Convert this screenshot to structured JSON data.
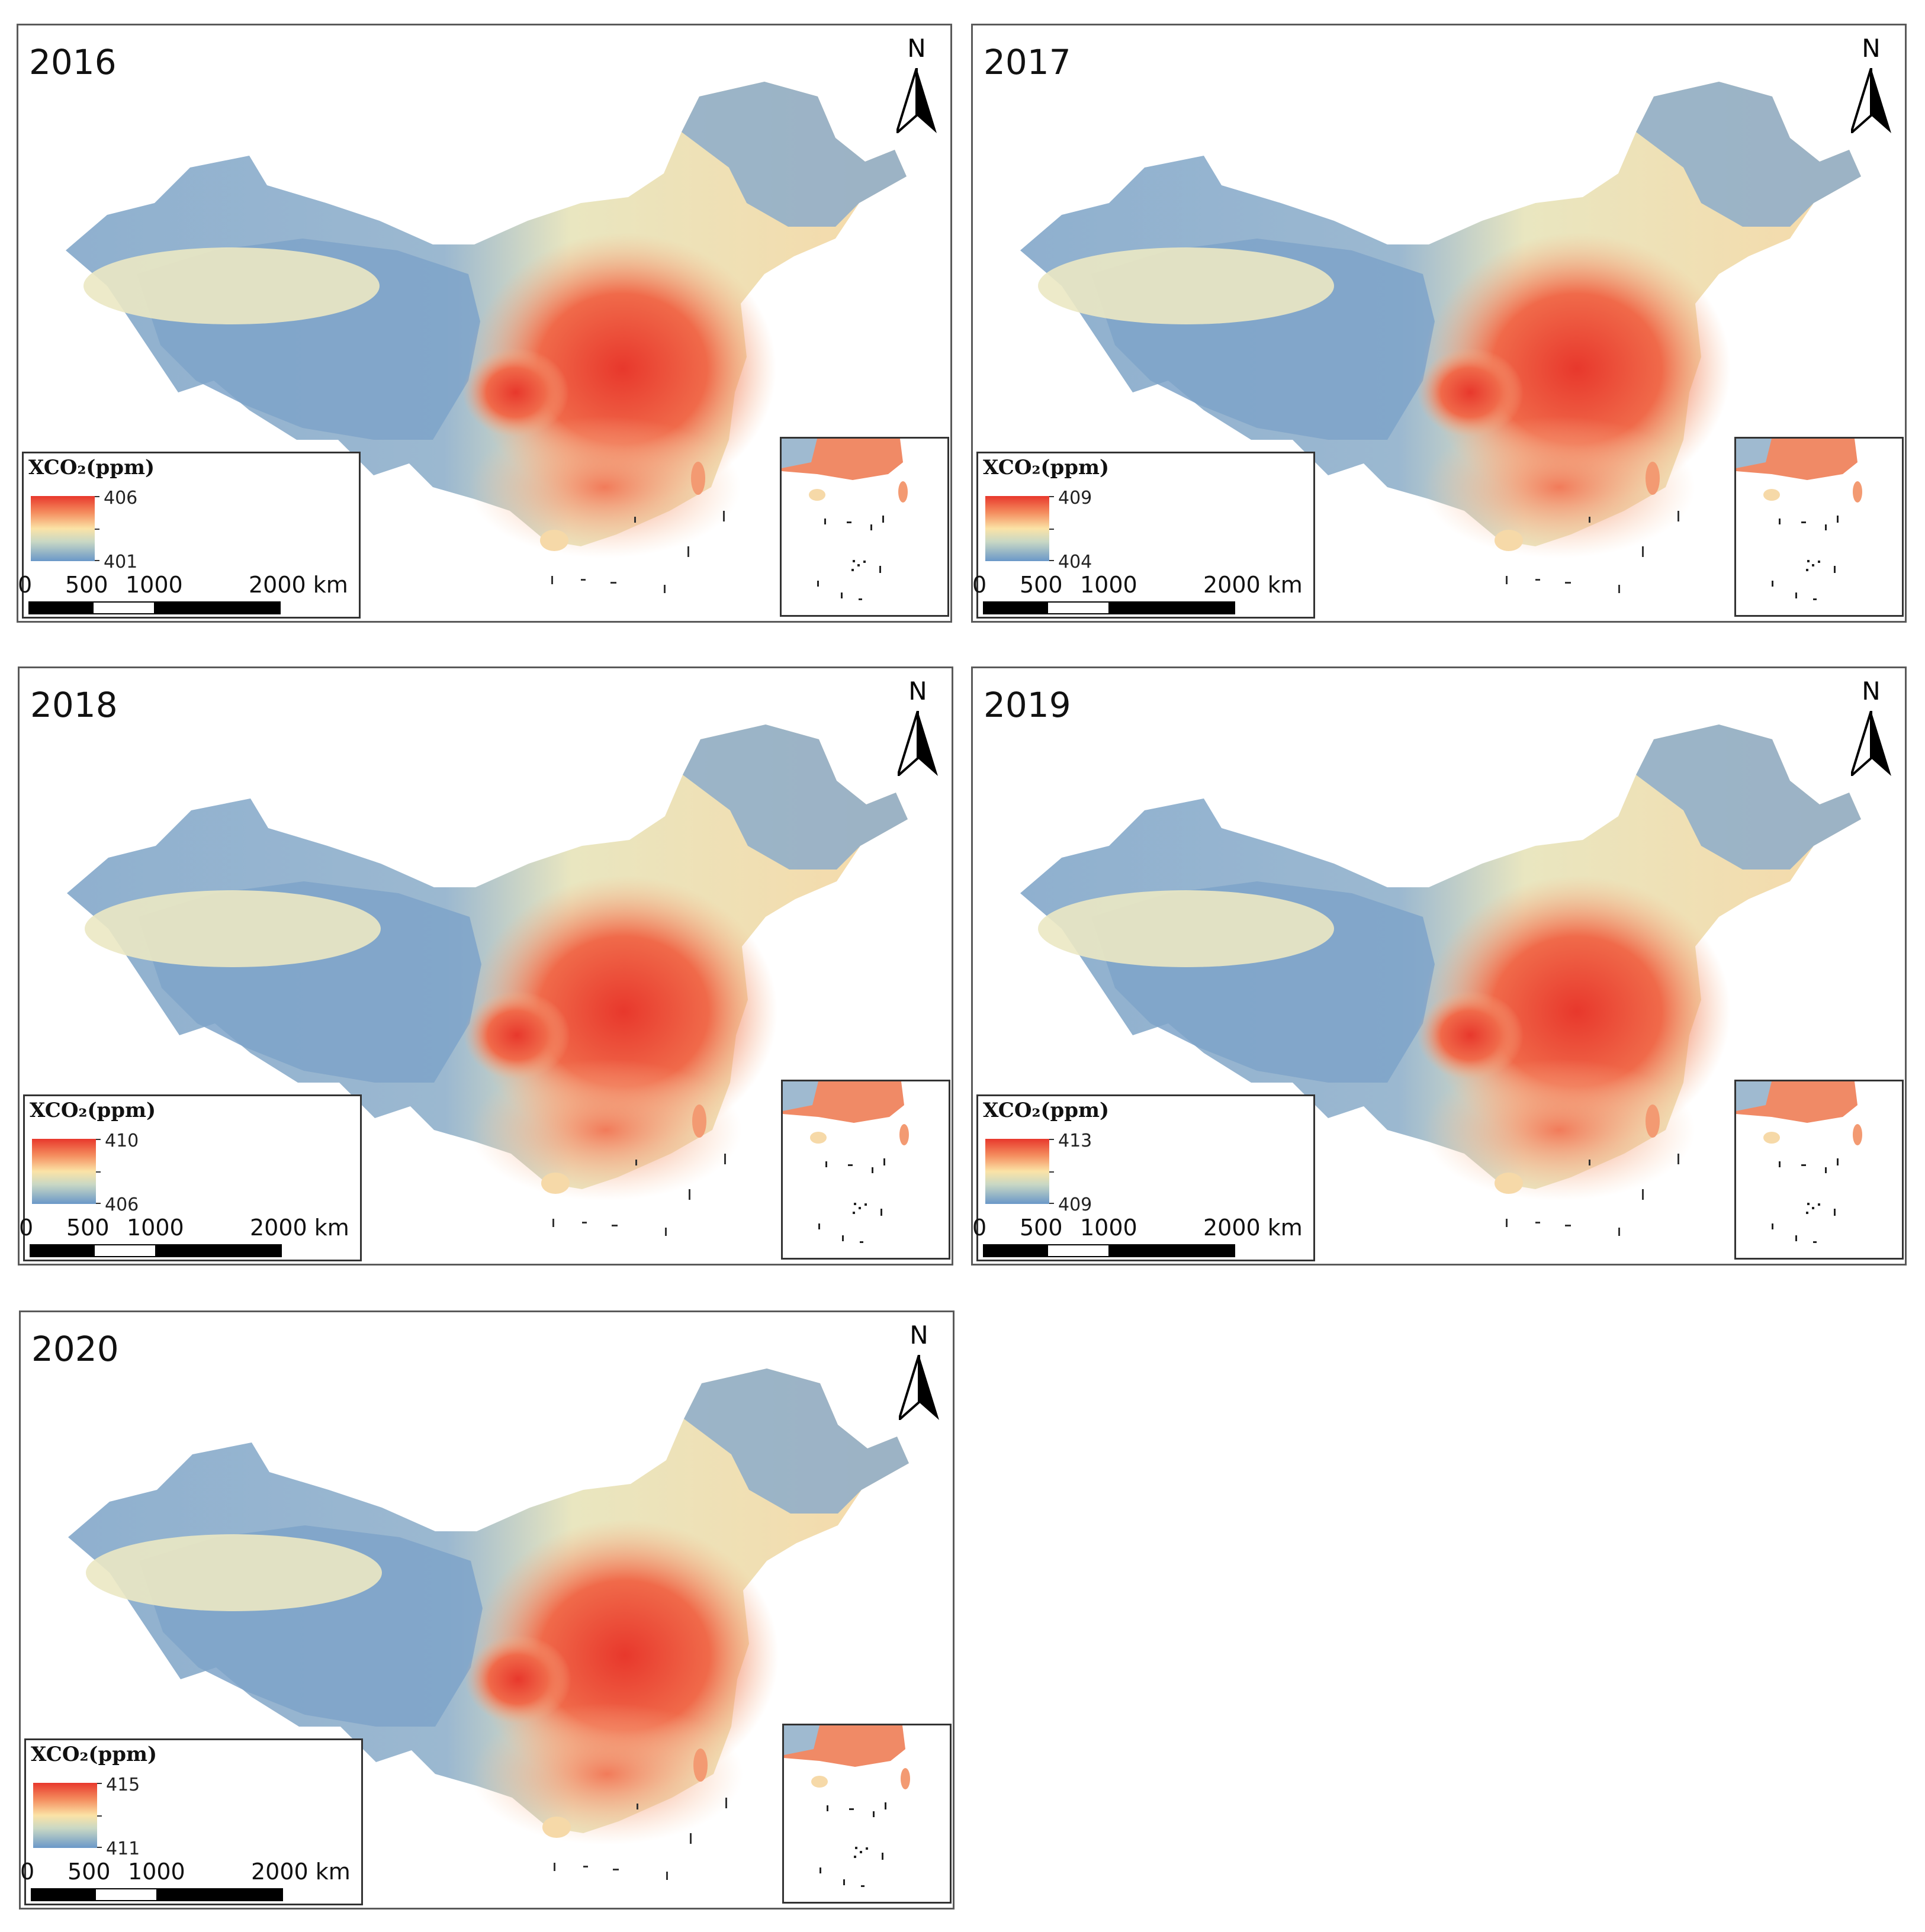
{
  "figure": {
    "panels": [
      {
        "year": "2016",
        "legend_title": "XCO₂(ppm)",
        "legend_max": "406",
        "legend_min": "401"
      },
      {
        "year": "2017",
        "legend_title": "XCO₂(ppm)",
        "legend_max": "409",
        "legend_min": "404"
      },
      {
        "year": "2018",
        "legend_title": "XCO₂(ppm)",
        "legend_max": "410",
        "legend_min": "406"
      },
      {
        "year": "2019",
        "legend_title": "XCO₂(ppm)",
        "legend_max": "413",
        "legend_min": "409"
      },
      {
        "year": "2020",
        "legend_title": "XCO₂(ppm)",
        "legend_max": "415",
        "legend_min": "411"
      }
    ],
    "north_label": "N",
    "scale_labels": [
      "0",
      "500",
      "1000",
      "2000 km"
    ],
    "colors": {
      "high": "#e8382c",
      "mid_high": "#f48b5d",
      "mid": "#fbe3a6",
      "low_mid": "#c9d8c4",
      "low": "#6a98c8"
    }
  }
}
